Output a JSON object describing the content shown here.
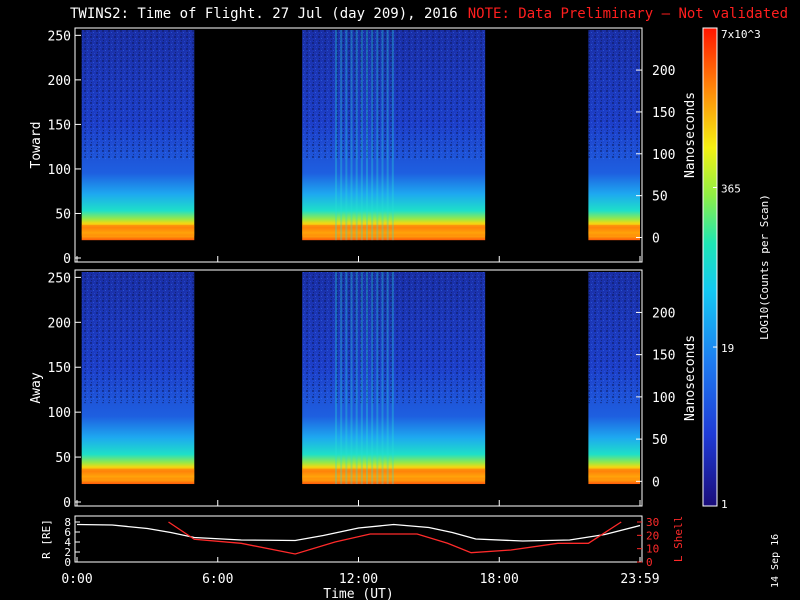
{
  "header": {
    "title": "TWINS2: Time of Flight. 27 Jul (day 209), 2016",
    "note": "NOTE: Data Preliminary — Not validated"
  },
  "stamp": "14 Sep 16",
  "colors": {
    "background": "#000000",
    "note": "#ff1e1e",
    "axis": "#ffffff",
    "l_shell": "#ff2a2a",
    "r_re": "#ffffff"
  },
  "chart_data": [
    {
      "type": "heatmap",
      "panel": "Toward",
      "ylabel": "Toward",
      "y_right_label": "Nanoseconds",
      "ylim": [
        0,
        256
      ],
      "y_ticks": [
        0,
        50,
        100,
        150,
        200,
        250
      ],
      "y_right_ticks": [
        0,
        50,
        100,
        150,
        200
      ],
      "x_ticks": [
        "0:00",
        "6:00",
        "12:00",
        "18:00",
        "23:59"
      ],
      "x_range_hours": [
        0,
        24
      ],
      "data_intervals_hours": [
        [
          0.2,
          5.0
        ],
        [
          9.6,
          17.4
        ],
        [
          21.8,
          24.0
        ]
      ],
      "band_y": [
        20,
        40
      ],
      "bright_band_y": [
        25,
        37
      ]
    },
    {
      "type": "heatmap",
      "panel": "Away",
      "ylabel": "Away",
      "y_right_label": "Nanoseconds",
      "ylim": [
        0,
        256
      ],
      "y_ticks": [
        0,
        50,
        100,
        150,
        200,
        250
      ],
      "y_right_ticks": [
        0,
        50,
        100,
        150,
        200
      ],
      "x_ticks": [
        "0:00",
        "6:00",
        "12:00",
        "18:00",
        "23:59"
      ],
      "x_range_hours": [
        0,
        24
      ],
      "data_intervals_hours": [
        [
          0.2,
          5.0
        ],
        [
          9.6,
          17.4
        ],
        [
          21.8,
          24.0
        ]
      ],
      "band_y": [
        20,
        40
      ],
      "bright_band_y": [
        25,
        37
      ]
    },
    {
      "type": "line",
      "panel": "orbit",
      "xlabel": "Time (UT)",
      "ylabel": "R [RE]",
      "y_right_label": "L Shell",
      "ylim_left": [
        0,
        8
      ],
      "ylim_right": [
        0,
        30
      ],
      "y_ticks_left": [
        0,
        2,
        4,
        6,
        8
      ],
      "y_ticks_right": [
        0,
        10,
        20,
        30
      ],
      "x_ticks": [
        "0:00",
        "6:00",
        "12:00",
        "18:00",
        "23:59"
      ],
      "series": [
        {
          "name": "R [RE]",
          "axis": "left",
          "x": [
            0,
            1.5,
            3,
            4,
            5,
            7,
            9.3,
            10.5,
            12,
            13.5,
            15,
            16,
            17,
            19,
            21,
            22.5,
            24
          ],
          "y": [
            7.5,
            7.4,
            6.7,
            5.9,
            4.9,
            4.4,
            4.3,
            5.3,
            6.8,
            7.5,
            6.9,
            5.9,
            4.6,
            4.2,
            4.4,
            5.5,
            7.3
          ]
        },
        {
          "name": "L Shell",
          "axis": "right",
          "x": [
            3.9,
            5.0,
            7.0,
            9.3,
            11.0,
            12.5,
            14.5,
            15.8,
            16.8,
            18.5,
            20.5,
            21.8,
            23.2
          ],
          "y": [
            30,
            17,
            14,
            6,
            15,
            21,
            21,
            14,
            7,
            9,
            14,
            14,
            30
          ]
        }
      ]
    },
    {
      "type": "heatmap",
      "panel": "colorbar",
      "label": "LOG10(Counts per Scan)",
      "scale": "log",
      "tick_labels": [
        "1",
        "19",
        "365",
        "7x10^3"
      ],
      "tick_values": [
        1,
        19,
        365,
        7000
      ]
    }
  ]
}
